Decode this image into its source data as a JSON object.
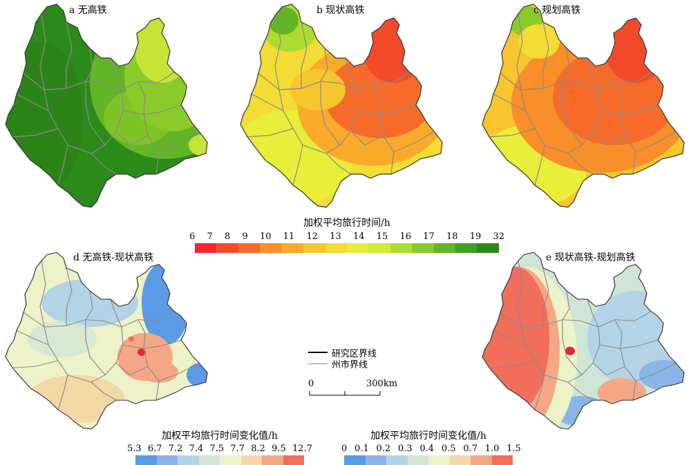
{
  "maps": {
    "a": {
      "title": "a 无高铁"
    },
    "b": {
      "title": "b 现状高铁"
    },
    "c": {
      "title": "c 规划高铁"
    },
    "d": {
      "title": "d 无高铁-现状高铁"
    },
    "e": {
      "title": "e 现状高铁-规划高铁"
    }
  },
  "legend_time": {
    "title": "加权平均旅行时间/h",
    "ticks": [
      "6",
      "7",
      "8",
      "9",
      "10",
      "11",
      "12",
      "13",
      "14",
      "15",
      "16",
      "17",
      "18",
      "19",
      "32"
    ],
    "colors": [
      "#f1262f",
      "#f34a2c",
      "#f66b2a",
      "#f88f28",
      "#f9aa2b",
      "#f7c52e",
      "#f2dc35",
      "#e8ee3a",
      "#d0ec33",
      "#aedc2e",
      "#8acb2a",
      "#62b524",
      "#44a020",
      "#2b8a1a"
    ]
  },
  "legend_d": {
    "title": "加权平均旅行时间变化值/h",
    "ticks": [
      "5.3",
      "6.7",
      "7.2",
      "7.4",
      "7.5",
      "7.7",
      "8.2",
      "9.5",
      "12.7"
    ],
    "colors": [
      "#5b9ae6",
      "#8ab5e6",
      "#b5d3e6",
      "#cfe6d6",
      "#eef2c8",
      "#f2d9a6",
      "#f4a787",
      "#f06e5a"
    ]
  },
  "legend_e": {
    "title": "加权平均旅行时间变化值/h",
    "ticks": [
      "0",
      "0.1",
      "0.2",
      "0.3",
      "0.4",
      "0.5",
      "0.7",
      "1.0",
      "1.5"
    ],
    "colors": [
      "#5b9ae6",
      "#8ab5e6",
      "#b5d3e6",
      "#cfe6d6",
      "#eef2c8",
      "#f2d9a6",
      "#f4a787",
      "#f06e5a"
    ]
  },
  "key": {
    "study_boundary": "研究区界线",
    "prefecture_boundary": "州市界线",
    "scale_start": "0",
    "scale_end": "300km"
  }
}
